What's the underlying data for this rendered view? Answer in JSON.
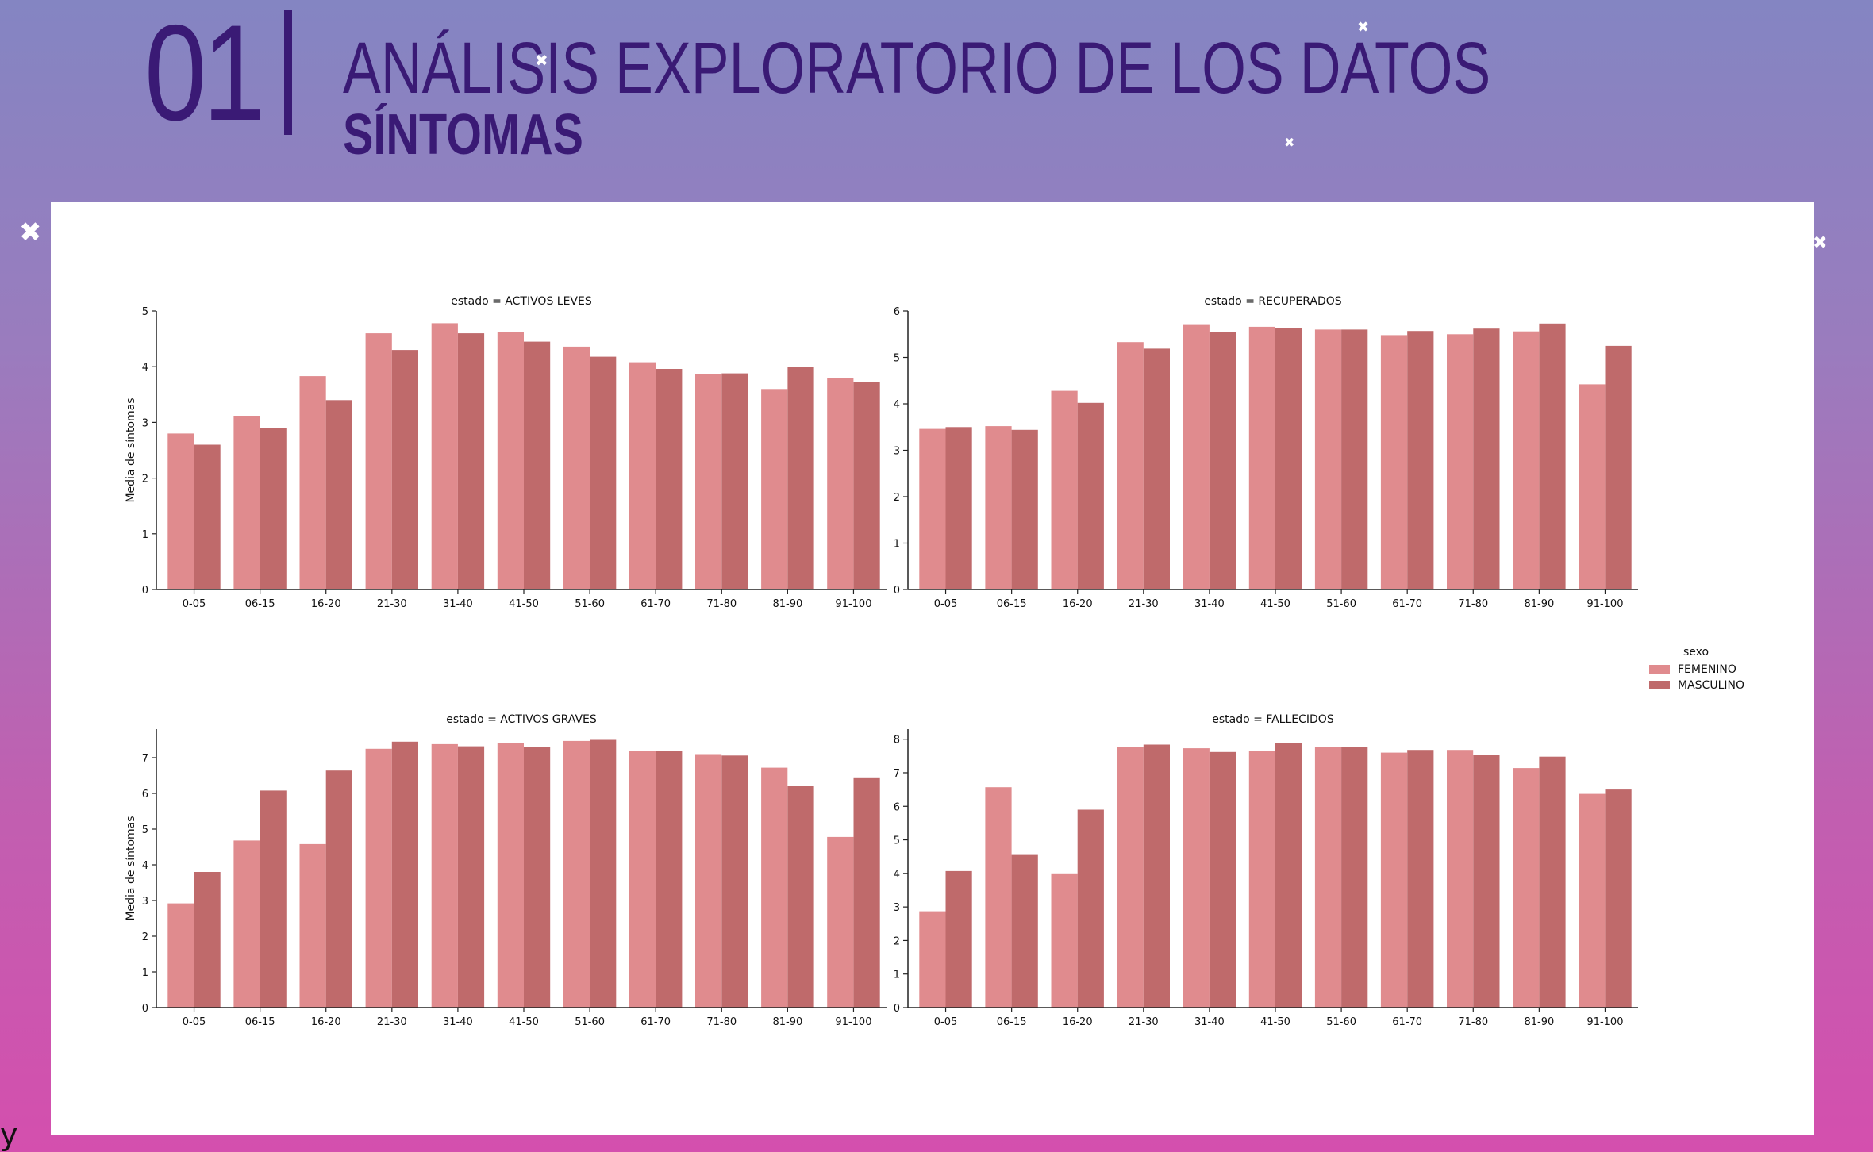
{
  "header": {
    "number": "01",
    "title": "ANÁLISIS EXPLORATORIO DE LOS DATOS",
    "subtitle": "SÍNTOMAS"
  },
  "corner_letter": "y",
  "decorations": {
    "sparkle_glyph": "✖",
    "sparkle_icon": "sparkle-star-icon"
  },
  "colors": {
    "background_top": "#8485c2",
    "background_bottom": "#d44fae",
    "title": "#3a1a75",
    "femenino": "#e08b8e",
    "masculino": "#bf6a6b"
  },
  "legend": {
    "title": "sexo",
    "entries": [
      "FEMENINO",
      "MASCULINO"
    ],
    "placement": "right"
  },
  "chart_data": [
    {
      "type": "bar",
      "title": "estado = ACTIVOS LEVES",
      "ylabel": "Media de síntomas",
      "xlabel": "",
      "ylim": [
        0,
        5
      ],
      "yticks": [
        0,
        1,
        2,
        3,
        4,
        5
      ],
      "categories": [
        "0-05",
        "06-15",
        "16-20",
        "21-30",
        "31-40",
        "41-50",
        "51-60",
        "61-70",
        "71-80",
        "81-90",
        "91-100"
      ],
      "series": [
        {
          "name": "FEMENINO",
          "values": [
            2.8,
            3.12,
            3.83,
            4.6,
            4.78,
            4.62,
            4.36,
            4.08,
            3.87,
            3.6,
            3.8
          ]
        },
        {
          "name": "MASCULINO",
          "values": [
            2.6,
            2.9,
            3.4,
            4.3,
            4.6,
            4.45,
            4.18,
            3.96,
            3.88,
            4.0,
            3.72
          ]
        }
      ]
    },
    {
      "type": "bar",
      "title": "estado = RECUPERADOS",
      "ylabel": "",
      "xlabel": "",
      "ylim": [
        0,
        6
      ],
      "yticks": [
        0,
        1,
        2,
        3,
        4,
        5,
        6
      ],
      "categories": [
        "0-05",
        "06-15",
        "16-20",
        "21-30",
        "31-40",
        "41-50",
        "51-60",
        "61-70",
        "71-80",
        "81-90",
        "91-100"
      ],
      "series": [
        {
          "name": "FEMENINO",
          "values": [
            3.46,
            3.52,
            4.28,
            5.33,
            5.7,
            5.66,
            5.6,
            5.48,
            5.5,
            5.56,
            4.42
          ]
        },
        {
          "name": "MASCULINO",
          "values": [
            3.5,
            3.44,
            4.02,
            5.19,
            5.55,
            5.63,
            5.6,
            5.57,
            5.62,
            5.73,
            5.25
          ]
        }
      ]
    },
    {
      "type": "bar",
      "title": "estado = ACTIVOS GRAVES",
      "ylabel": "Media de síntomas",
      "xlabel": "",
      "ylim": [
        0,
        7.8
      ],
      "yticks": [
        0,
        1,
        2,
        3,
        4,
        5,
        6,
        7
      ],
      "categories": [
        "0-05",
        "06-15",
        "16-20",
        "21-30",
        "31-40",
        "41-50",
        "51-60",
        "61-70",
        "71-80",
        "81-90",
        "91-100"
      ],
      "series": [
        {
          "name": "FEMENINO",
          "values": [
            2.92,
            4.68,
            4.58,
            7.25,
            7.38,
            7.42,
            7.47,
            7.18,
            7.1,
            6.72,
            4.78
          ]
        },
        {
          "name": "MASCULINO",
          "values": [
            3.8,
            6.08,
            6.64,
            7.45,
            7.32,
            7.3,
            7.5,
            7.19,
            7.06,
            6.2,
            6.45
          ]
        }
      ]
    },
    {
      "type": "bar",
      "title": "estado = FALLECIDOS",
      "ylabel": "",
      "xlabel": "",
      "ylim": [
        0,
        8.3
      ],
      "yticks": [
        0,
        1,
        2,
        3,
        4,
        5,
        6,
        7,
        8
      ],
      "categories": [
        "0-05",
        "06-15",
        "16-20",
        "21-30",
        "31-40",
        "41-50",
        "51-60",
        "61-70",
        "71-80",
        "81-90",
        "91-100"
      ],
      "series": [
        {
          "name": "FEMENINO",
          "values": [
            2.87,
            6.57,
            4.0,
            7.77,
            7.73,
            7.64,
            7.78,
            7.6,
            7.68,
            7.14,
            6.37
          ]
        },
        {
          "name": "MASCULINO",
          "values": [
            4.07,
            4.55,
            5.9,
            7.84,
            7.62,
            7.89,
            7.76,
            7.68,
            7.52,
            7.48,
            6.5
          ]
        }
      ]
    }
  ]
}
